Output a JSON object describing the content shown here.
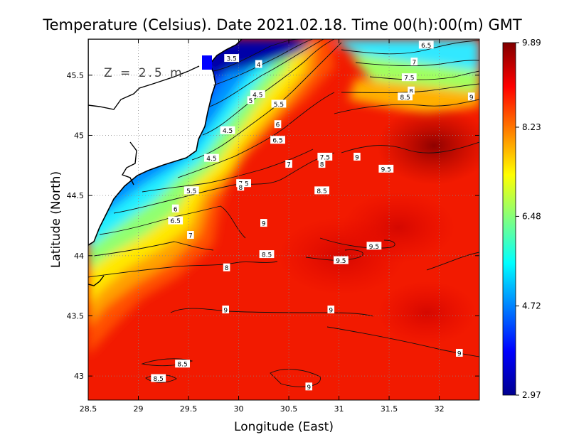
{
  "chart_data": {
    "type": "heatmap",
    "title": "Temperature (Celsius). Date 2021.02.18. Time 00(h):00(m) GMT",
    "annotation": "Z = 2.5 m",
    "xlabel": "Longitude (East)",
    "ylabel": "Latitude (North)",
    "xlim": [
      28.5,
      32.4
    ],
    "ylim": [
      42.8,
      45.8
    ],
    "x_ticks": [
      "28.5",
      "29",
      "29.5",
      "30",
      "30.5",
      "31",
      "31.5",
      "32"
    ],
    "y_ticks": [
      "43",
      "43.5",
      "44",
      "44.5",
      "45",
      "45.5"
    ],
    "colorbar": {
      "min": 2.97,
      "max": 9.89,
      "tick_labels": [
        "9.89",
        "8.23",
        "6.48",
        "4.72",
        "2.97"
      ],
      "colormap": [
        "#00008f",
        "#0000ff",
        "#0080ff",
        "#00ffff",
        "#80ff80",
        "#ffff00",
        "#ff8000",
        "#ff0000",
        "#800000"
      ]
    },
    "grid": true,
    "grid_style": "dotted",
    "land_color": "#ffffff",
    "contour_labels": [
      {
        "text": "3.5",
        "lon": 29.93,
        "lat": 45.64
      },
      {
        "text": "4",
        "lon": 30.2,
        "lat": 45.59
      },
      {
        "text": "4.5",
        "lon": 30.19,
        "lat": 45.34
      },
      {
        "text": "5",
        "lon": 30.12,
        "lat": 45.29
      },
      {
        "text": "5.5",
        "lon": 30.4,
        "lat": 45.26
      },
      {
        "text": "6",
        "lon": 30.39,
        "lat": 45.09
      },
      {
        "text": "6.5",
        "lon": 30.39,
        "lat": 44.96
      },
      {
        "text": "4.5",
        "lon": 29.89,
        "lat": 45.04
      },
      {
        "text": "4.5",
        "lon": 29.73,
        "lat": 44.81
      },
      {
        "text": "7",
        "lon": 30.5,
        "lat": 44.76
      },
      {
        "text": "7.5",
        "lon": 30.86,
        "lat": 44.82
      },
      {
        "text": "8",
        "lon": 30.83,
        "lat": 44.76
      },
      {
        "text": "9",
        "lon": 31.18,
        "lat": 44.82
      },
      {
        "text": "9.5",
        "lon": 31.47,
        "lat": 44.72
      },
      {
        "text": "7.5",
        "lon": 30.05,
        "lat": 44.6
      },
      {
        "text": "8",
        "lon": 30.02,
        "lat": 44.57
      },
      {
        "text": "8.5",
        "lon": 30.83,
        "lat": 44.54
      },
      {
        "text": "5.5",
        "lon": 29.53,
        "lat": 44.54
      },
      {
        "text": "6",
        "lon": 29.37,
        "lat": 44.39
      },
      {
        "text": "6.5",
        "lon": 29.37,
        "lat": 44.29
      },
      {
        "text": "7",
        "lon": 29.52,
        "lat": 44.17
      },
      {
        "text": "9",
        "lon": 30.25,
        "lat": 44.27
      },
      {
        "text": "9.5",
        "lon": 31.35,
        "lat": 44.08
      },
      {
        "text": "8.5",
        "lon": 30.28,
        "lat": 44.01
      },
      {
        "text": "9.5",
        "lon": 31.02,
        "lat": 43.96
      },
      {
        "text": "8",
        "lon": 29.88,
        "lat": 43.9
      },
      {
        "text": "6.5",
        "lon": 31.87,
        "lat": 45.75
      },
      {
        "text": "7",
        "lon": 31.75,
        "lat": 45.61
      },
      {
        "text": "7.5",
        "lon": 31.7,
        "lat": 45.48
      },
      {
        "text": "8",
        "lon": 31.72,
        "lat": 45.37
      },
      {
        "text": "8.5",
        "lon": 31.66,
        "lat": 45.32
      },
      {
        "text": "9",
        "lon": 32.32,
        "lat": 45.32
      },
      {
        "text": "9",
        "lon": 29.87,
        "lat": 43.55
      },
      {
        "text": "9",
        "lon": 30.92,
        "lat": 43.55
      },
      {
        "text": "9",
        "lon": 32.2,
        "lat": 43.19
      },
      {
        "text": "8.5",
        "lon": 29.44,
        "lat": 43.1
      },
      {
        "text": "8.5",
        "lon": 29.2,
        "lat": 42.98
      },
      {
        "text": "9",
        "lon": 30.7,
        "lat": 42.91
      }
    ]
  }
}
